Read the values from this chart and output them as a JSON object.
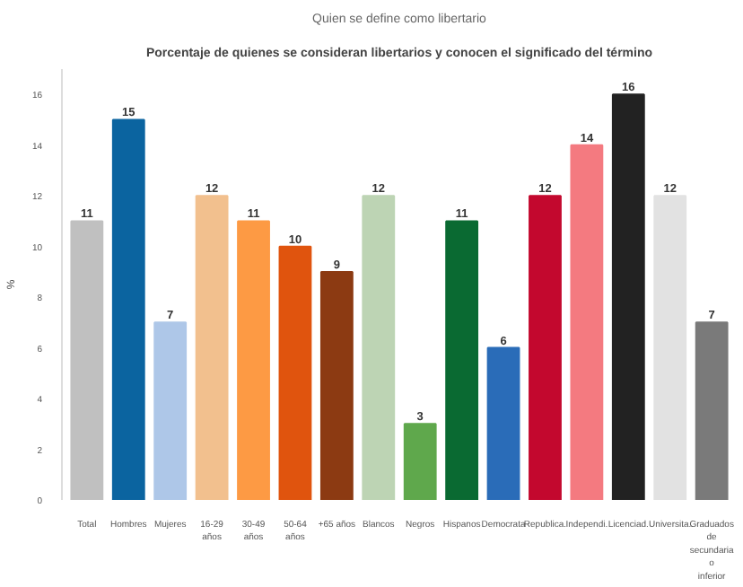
{
  "chart_data": {
    "type": "bar",
    "title": "Quien se define como libertario",
    "subtitle": "Porcentaje de quienes se consideran libertarios y conocen el significado del término",
    "ylabel": "%",
    "categories": [
      "Total",
      "Hombres",
      "Mujeres",
      "16-29 años",
      "30-49 años",
      "50-64 años",
      "+65 años",
      "Blancos",
      "Negros",
      "Hispanos",
      "Democrata",
      "Republica.",
      "Independi.",
      "Licenciad.",
      "Universita.",
      "Graduados de secundaria o inferior"
    ],
    "values": [
      11,
      15,
      7,
      12,
      11,
      10,
      9,
      12,
      3,
      11,
      6,
      12,
      14,
      16,
      12,
      7
    ],
    "colors": [
      "#c0c0c0",
      "#0b64a0",
      "#aec7e8",
      "#f2c08e",
      "#fd9a44",
      "#e0540e",
      "#8c3a12",
      "#bdd4b4",
      "#5fa84c",
      "#0a6a32",
      "#2a6cb8",
      "#c3082e",
      "#f47a80",
      "#222222",
      "#e2e2e2",
      "#7a7a7a"
    ],
    "ylim": [
      0,
      17
    ],
    "yticks": [
      0,
      2,
      4,
      6,
      8,
      10,
      12,
      14,
      16
    ],
    "data_labels": true,
    "grid": false
  }
}
